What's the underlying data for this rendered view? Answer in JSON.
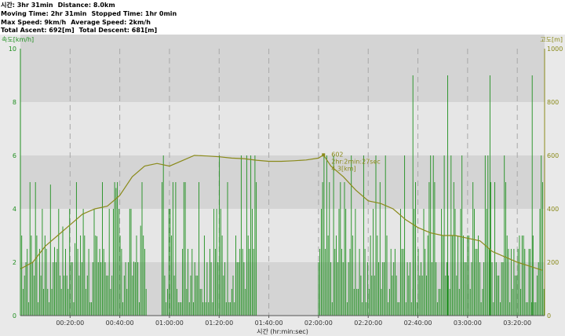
{
  "stats": {
    "line1": [
      "시간: 3hr 31min",
      "Distance: 8.0km"
    ],
    "line2": [
      "Moving Time: 2hr 31min",
      "Stopped Time: 1hr 0min"
    ],
    "line3": [
      "Max Speed: 9km/h",
      "Average Speed: 2km/h"
    ],
    "line4": [
      "Total Ascent: 692[m]",
      "Total Descent: 681[m]"
    ]
  },
  "colors": {
    "speed": "#1f8f1f",
    "elevation": "#8a8a1a",
    "band_dark": "#d4d4d4",
    "band_light": "#e6e6e6"
  },
  "chart_data": {
    "type": "line",
    "xlabel": "시간 (hr:min:sec)",
    "x_ticks": [
      "00:20:00",
      "00:40:00",
      "01:00:00",
      "01:20:00",
      "01:40:00",
      "02:00:00",
      "02:20:00",
      "02:40:00",
      "03:00:00",
      "03:20:00"
    ],
    "x_tick_minutes": [
      20,
      40,
      60,
      80,
      100,
      120,
      140,
      160,
      180,
      200
    ],
    "xlim_minutes": [
      0,
      211
    ],
    "left_axis": {
      "label": "속도[km/h]",
      "ticks": [
        "0",
        "2",
        "4",
        "6",
        "8",
        "10"
      ],
      "ylim": [
        0,
        10
      ]
    },
    "right_axis": {
      "label": "고도[m]",
      "ticks": [
        "0",
        "200",
        "400",
        "600",
        "800",
        "1000"
      ],
      "ylim": [
        0,
        1000
      ]
    },
    "series": [
      {
        "kind": "speed_bars",
        "segments": [
          {
            "start": 0,
            "end": 51,
            "min": 0.5,
            "max": 5.0
          },
          {
            "start": 57,
            "end": 95,
            "min": 0.5,
            "max": 6.0
          },
          {
            "start": 120,
            "end": 211,
            "min": 0.5,
            "max": 6.5
          }
        ],
        "spikes_at_minutes": [
          158,
          172,
          189,
          206
        ],
        "spike_value": 9
      },
      {
        "kind": "elevation",
        "x_minutes": [
          0,
          5,
          10,
          15,
          20,
          25,
          30,
          35,
          40,
          45,
          50,
          55,
          60,
          65,
          70,
          75,
          80,
          85,
          90,
          95,
          100,
          105,
          110,
          115,
          120,
          122,
          125,
          130,
          135,
          140,
          145,
          150,
          155,
          160,
          165,
          170,
          175,
          180,
          185,
          190,
          195,
          200,
          205,
          210
        ],
        "values": [
          175,
          200,
          260,
          300,
          340,
          380,
          400,
          410,
          450,
          520,
          560,
          570,
          560,
          580,
          600,
          598,
          595,
          590,
          588,
          582,
          578,
          578,
          580,
          583,
          590,
          602,
          560,
          520,
          470,
          430,
          420,
          400,
          360,
          330,
          310,
          300,
          300,
          290,
          280,
          240,
          220,
          200,
          185,
          170
        ]
      }
    ],
    "annotation": {
      "x_minutes": 122,
      "elevation": "602",
      "time": "2hr:2min:27sec",
      "distance": "4.3[km]"
    },
    "grid": true
  }
}
